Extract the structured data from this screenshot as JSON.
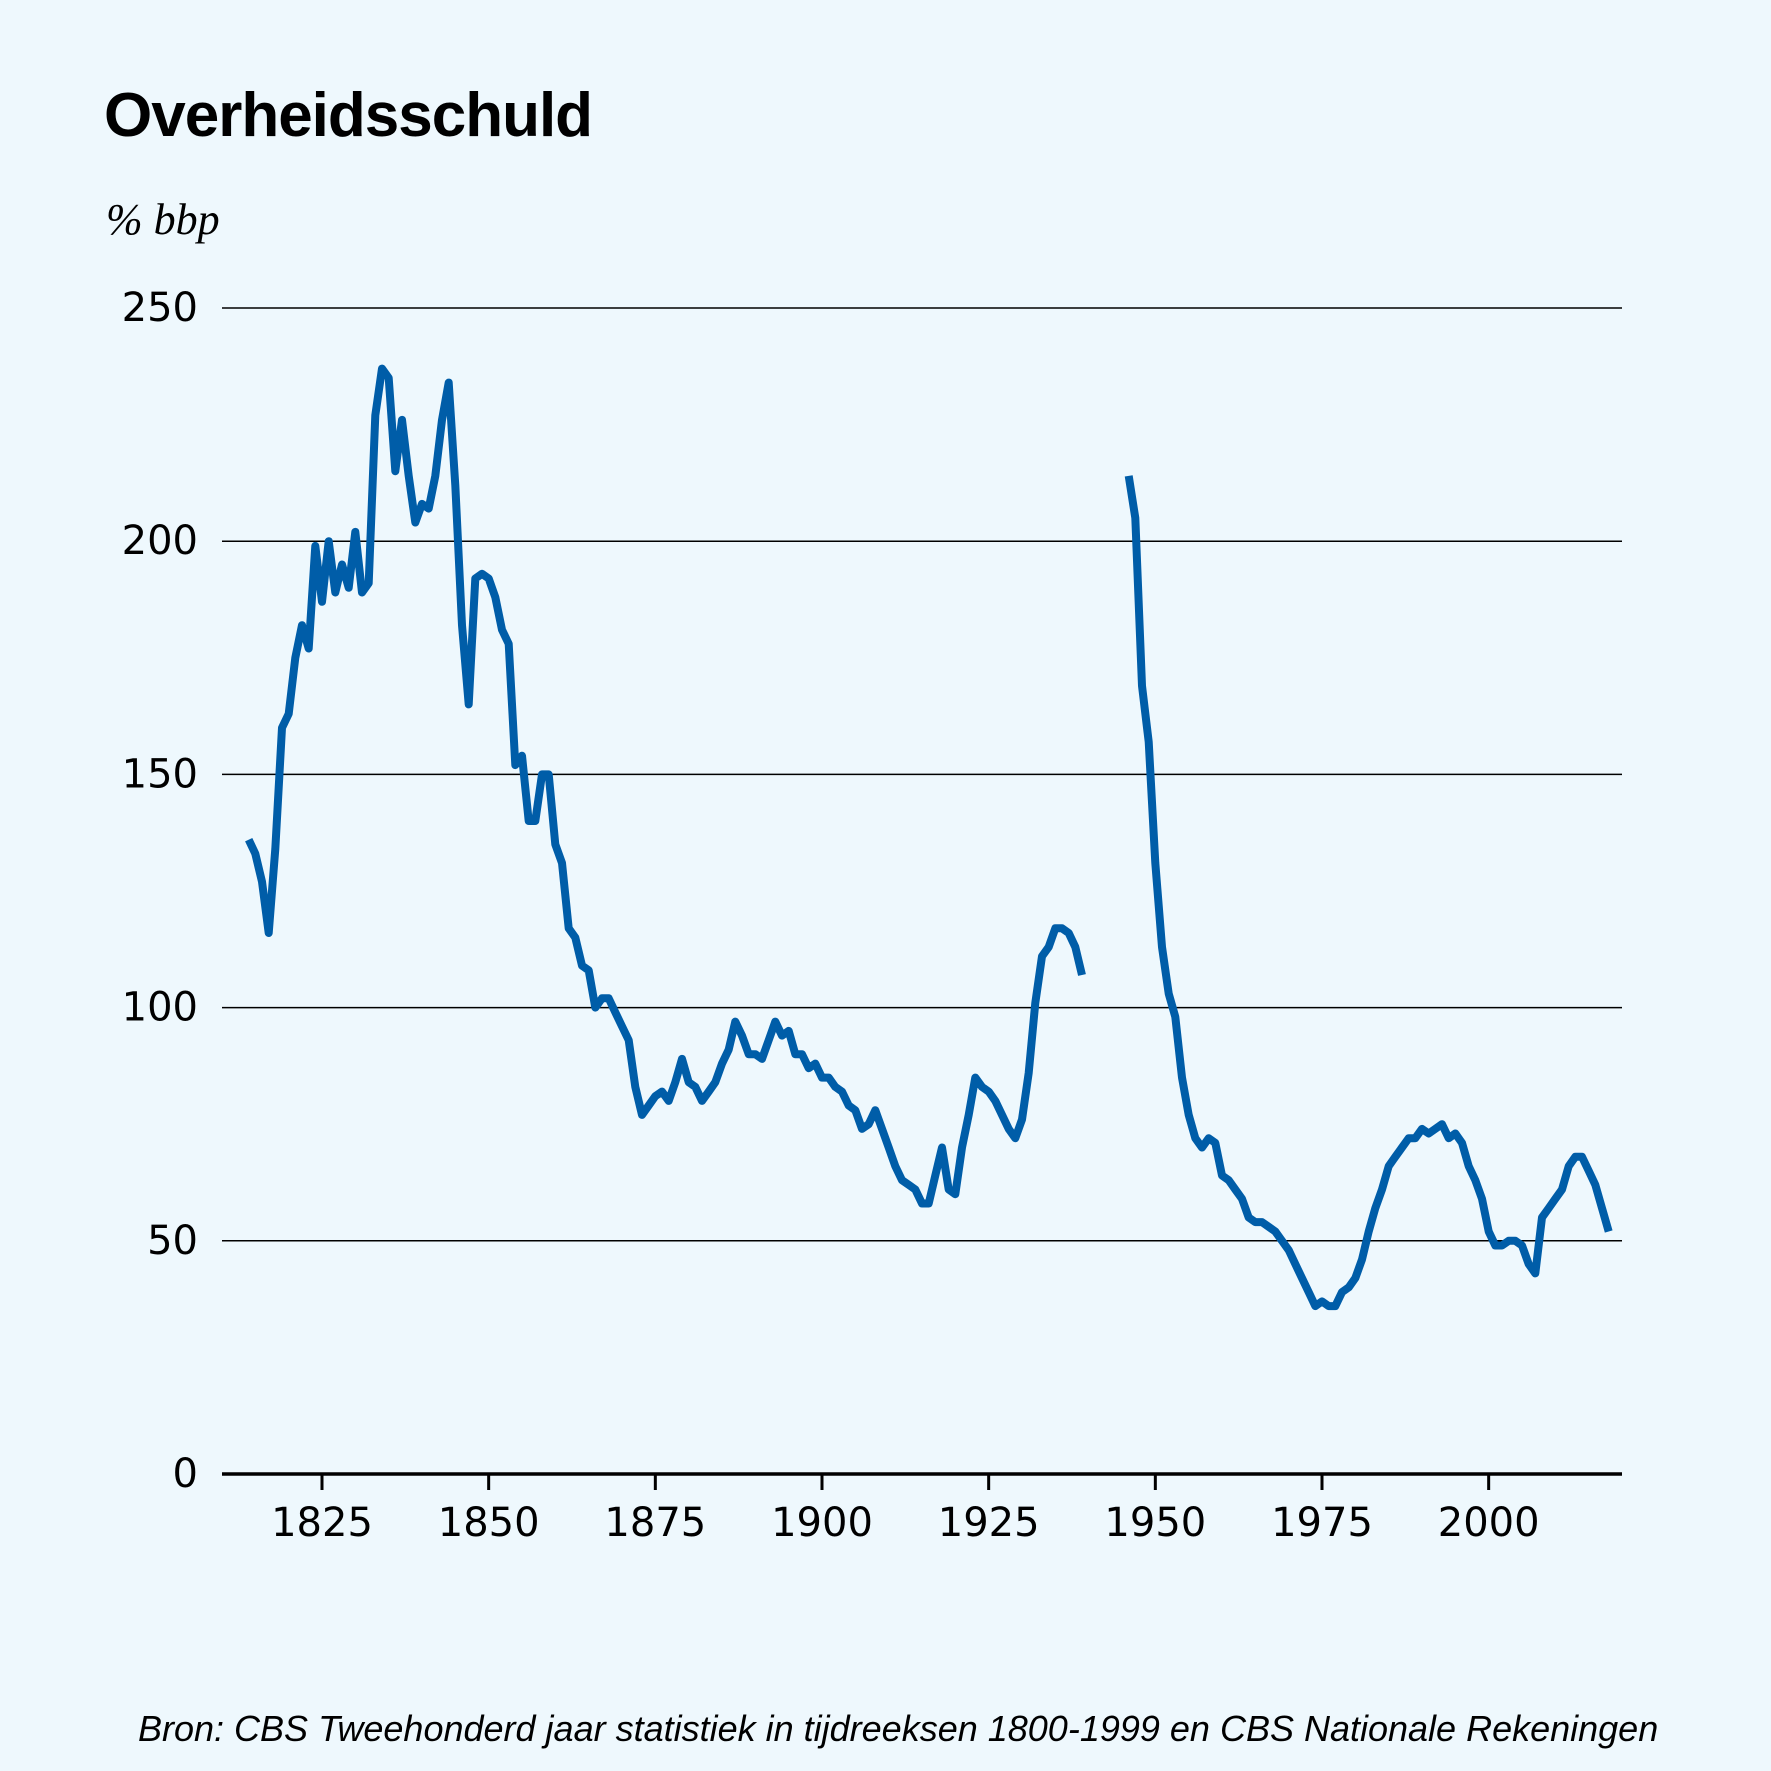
{
  "title": "Overheidsschuld",
  "unit_label": "% bbp",
  "source": "Bron: CBS Tweehonderd jaar statistiek in tijdreeksen 1800-1999 en CBS Nationale Rekeningen",
  "colors": {
    "background": "#eef8fd",
    "line": "#005da8"
  },
  "chart_data": {
    "type": "line",
    "title": "Overheidsschuld",
    "xlabel": "",
    "ylabel": "% bbp",
    "xlim": [
      1810,
      2020
    ],
    "ylim": [
      0,
      250
    ],
    "yticks": [
      0,
      50,
      100,
      150,
      200,
      250
    ],
    "xticks": [
      1825,
      1850,
      1875,
      1900,
      1925,
      1950,
      1975,
      2000
    ],
    "grid": true,
    "series": [
      {
        "name": "Overheidsschuld (% bbp)",
        "segments": [
          [
            [
              1814,
              136
            ],
            [
              1815,
              133
            ],
            [
              1816,
              127
            ],
            [
              1817,
              116
            ],
            [
              1818,
              134
            ],
            [
              1819,
              160
            ],
            [
              1820,
              163
            ],
            [
              1821,
              175
            ],
            [
              1822,
              182
            ],
            [
              1823,
              177
            ],
            [
              1824,
              199
            ],
            [
              1825,
              187
            ],
            [
              1826,
              200
            ],
            [
              1827,
              189
            ],
            [
              1828,
              195
            ],
            [
              1829,
              190
            ],
            [
              1830,
              202
            ],
            [
              1831,
              189
            ],
            [
              1832,
              191
            ],
            [
              1833,
              227
            ],
            [
              1834,
              237
            ],
            [
              1835,
              235
            ],
            [
              1836,
              215
            ],
            [
              1837,
              226
            ],
            [
              1838,
              214
            ],
            [
              1839,
              204
            ],
            [
              1840,
              208
            ],
            [
              1841,
              207
            ],
            [
              1842,
              214
            ],
            [
              1843,
              226
            ],
            [
              1844,
              234
            ],
            [
              1845,
              212
            ],
            [
              1846,
              182
            ],
            [
              1847,
              165
            ],
            [
              1848,
              192
            ],
            [
              1849,
              193
            ],
            [
              1850,
              192
            ],
            [
              1851,
              188
            ],
            [
              1852,
              181
            ],
            [
              1853,
              178
            ],
            [
              1854,
              152
            ],
            [
              1855,
              154
            ],
            [
              1856,
              140
            ],
            [
              1857,
              140
            ],
            [
              1858,
              150
            ],
            [
              1859,
              150
            ],
            [
              1860,
              135
            ],
            [
              1861,
              131
            ],
            [
              1862,
              117
            ],
            [
              1863,
              115
            ],
            [
              1864,
              109
            ],
            [
              1865,
              108
            ],
            [
              1866,
              100
            ],
            [
              1867,
              102
            ],
            [
              1868,
              102
            ],
            [
              1869,
              99
            ],
            [
              1870,
              96
            ],
            [
              1871,
              93
            ],
            [
              1872,
              83
            ],
            [
              1873,
              77
            ],
            [
              1874,
              79
            ],
            [
              1875,
              81
            ],
            [
              1876,
              82
            ],
            [
              1877,
              80
            ],
            [
              1878,
              84
            ],
            [
              1879,
              89
            ],
            [
              1880,
              84
            ],
            [
              1881,
              83
            ],
            [
              1882,
              80
            ],
            [
              1883,
              82
            ],
            [
              1884,
              84
            ],
            [
              1885,
              88
            ],
            [
              1886,
              91
            ],
            [
              1887,
              97
            ],
            [
              1888,
              94
            ],
            [
              1889,
              90
            ],
            [
              1890,
              90
            ],
            [
              1891,
              89
            ],
            [
              1892,
              93
            ],
            [
              1893,
              97
            ],
            [
              1894,
              94
            ],
            [
              1895,
              95
            ],
            [
              1896,
              90
            ],
            [
              1897,
              90
            ],
            [
              1898,
              87
            ],
            [
              1899,
              88
            ],
            [
              1900,
              85
            ],
            [
              1901,
              85
            ],
            [
              1902,
              83
            ],
            [
              1903,
              82
            ],
            [
              1904,
              79
            ],
            [
              1905,
              78
            ],
            [
              1906,
              74
            ],
            [
              1907,
              75
            ],
            [
              1908,
              78
            ],
            [
              1909,
              74
            ],
            [
              1910,
              70
            ],
            [
              1911,
              66
            ],
            [
              1912,
              63
            ],
            [
              1913,
              62
            ],
            [
              1914,
              61
            ],
            [
              1915,
              58
            ],
            [
              1916,
              58
            ],
            [
              1917,
              64
            ],
            [
              1918,
              70
            ],
            [
              1919,
              61
            ],
            [
              1920,
              60
            ],
            [
              1921,
              70
            ],
            [
              1922,
              77
            ],
            [
              1923,
              85
            ],
            [
              1924,
              83
            ],
            [
              1925,
              82
            ],
            [
              1926,
              80
            ],
            [
              1927,
              77
            ],
            [
              1928,
              74
            ],
            [
              1929,
              72
            ],
            [
              1930,
              76
            ],
            [
              1931,
              86
            ],
            [
              1932,
              101
            ],
            [
              1933,
              111
            ],
            [
              1934,
              113
            ],
            [
              1935,
              117
            ],
            [
              1936,
              117
            ],
            [
              1937,
              116
            ],
            [
              1938,
              113
            ],
            [
              1939,
              107
            ]
          ],
          [
            [
              1946,
              214
            ],
            [
              1947,
              205
            ],
            [
              1948,
              169
            ],
            [
              1949,
              157
            ],
            [
              1950,
              131
            ],
            [
              1951,
              113
            ],
            [
              1952,
              103
            ],
            [
              1953,
              98
            ],
            [
              1954,
              85
            ],
            [
              1955,
              77
            ],
            [
              1956,
              72
            ],
            [
              1957,
              70
            ],
            [
              1958,
              72
            ],
            [
              1959,
              71
            ],
            [
              1960,
              64
            ],
            [
              1961,
              63
            ],
            [
              1962,
              61
            ],
            [
              1963,
              59
            ],
            [
              1964,
              55
            ],
            [
              1965,
              54
            ],
            [
              1966,
              54
            ],
            [
              1967,
              53
            ],
            [
              1968,
              52
            ],
            [
              1969,
              50
            ],
            [
              1970,
              48
            ],
            [
              1971,
              45
            ],
            [
              1972,
              42
            ],
            [
              1973,
              39
            ],
            [
              1974,
              36
            ],
            [
              1975,
              37
            ],
            [
              1976,
              36
            ],
            [
              1977,
              36
            ],
            [
              1978,
              39
            ],
            [
              1979,
              40
            ],
            [
              1980,
              42
            ],
            [
              1981,
              46
            ],
            [
              1982,
              52
            ],
            [
              1983,
              57
            ],
            [
              1984,
              61
            ],
            [
              1985,
              66
            ],
            [
              1986,
              68
            ],
            [
              1987,
              70
            ],
            [
              1988,
              72
            ],
            [
              1989,
              72
            ],
            [
              1990,
              74
            ],
            [
              1991,
              73
            ],
            [
              1992,
              74
            ],
            [
              1993,
              75
            ],
            [
              1994,
              72
            ],
            [
              1995,
              73
            ],
            [
              1996,
              71
            ],
            [
              1997,
              66
            ],
            [
              1998,
              63
            ],
            [
              1999,
              59
            ],
            [
              2000,
              52
            ],
            [
              2001,
              49
            ],
            [
              2002,
              49
            ],
            [
              2003,
              50
            ],
            [
              2004,
              50
            ],
            [
              2005,
              49
            ],
            [
              2006,
              45
            ],
            [
              2007,
              43
            ],
            [
              2008,
              55
            ],
            [
              2009,
              57
            ],
            [
              2010,
              59
            ],
            [
              2011,
              61
            ],
            [
              2012,
              66
            ],
            [
              2013,
              68
            ],
            [
              2014,
              68
            ],
            [
              2015,
              65
            ],
            [
              2016,
              62
            ],
            [
              2017,
              57
            ],
            [
              2018,
              52
            ]
          ]
        ]
      }
    ]
  }
}
